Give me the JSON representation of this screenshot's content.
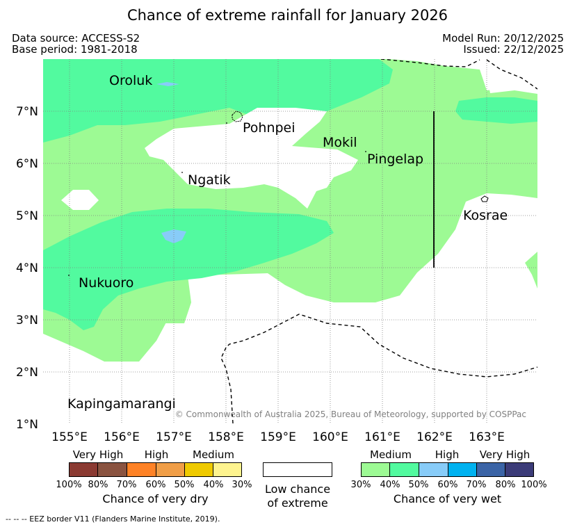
{
  "title": "Chance of extreme rainfall for January 2026",
  "header": {
    "data_source": "Data source: ACCESS-S2",
    "base_period": "Base period: 1981-2018",
    "model_run": "Model Run: 20/12/2025",
    "issued": "Issued: 22/12/2025"
  },
  "map": {
    "copyright": "© Commonwealth of Australia 2025, Bureau of Meteorology, supported by COSPPac",
    "lat_labels": [
      "7°N",
      "6°N",
      "5°N",
      "4°N",
      "3°N",
      "2°N",
      "1°N"
    ],
    "lon_labels": [
      "155°E",
      "156°E",
      "157°E",
      "158°E",
      "159°E",
      "160°E",
      "161°E",
      "162°E",
      "163°E"
    ],
    "places": [
      "Oroluk",
      "Pohnpei",
      "Mokil",
      "Pingelap",
      "Ngatik",
      "Kosrae",
      "Nukuoro",
      "Kapingamarangi"
    ],
    "colors": {
      "wet_medium": "#9dfa94",
      "wet_medium_high": "#52fa9f",
      "wet_high": "#88ccf8"
    }
  },
  "legend": {
    "dry": {
      "categories": [
        "Very High",
        "High",
        "Medium"
      ],
      "percents": [
        "100%",
        "80%",
        "70%",
        "60%",
        "50%",
        "40%",
        "30%"
      ],
      "colors": [
        "#8b3a32",
        "#8a5340",
        "#fe8226",
        "#f09e47",
        "#efca00",
        "#fef48f"
      ],
      "title": "Chance of very dry"
    },
    "low": {
      "line1": "Low chance",
      "line2": "of extreme",
      "color": "#ffffff"
    },
    "wet": {
      "categories": [
        "Medium",
        "High",
        "Very High"
      ],
      "percents": [
        "30%",
        "40%",
        "50%",
        "60%",
        "70%",
        "80%",
        "100%"
      ],
      "colors": [
        "#9dfa94",
        "#52fa9f",
        "#88ccf8",
        "#00b2f0",
        "#3b64a6",
        "#3b3b78"
      ],
      "title": "Chance of very wet"
    }
  },
  "footnote": "-- -- -- EEZ border V11 (Flanders Marine Institute, 2019)."
}
